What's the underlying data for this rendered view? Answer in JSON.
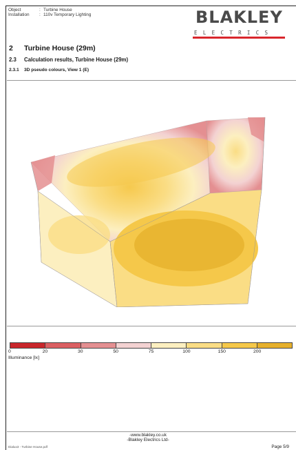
{
  "header": {
    "object_label": "Object",
    "object_value": "Turbine House",
    "installation_label": "Installation",
    "installation_value": "110v Temporary Lighting",
    "separator": ":"
  },
  "logo": {
    "wordmark": "BLAKLEY",
    "subtitle": "ELECTRICS"
  },
  "headings": {
    "h1_num": "2",
    "h1_text": "Turbine House (29m)",
    "h2_num": "2.3",
    "h2_text": "Calculation results, Turbine House (29m)",
    "h3_num": "2.3.1",
    "h3_text": "3D pseudo colours, View 1 (E)"
  },
  "legend": {
    "colors": [
      "#c8262b",
      "#db5f62",
      "#e48f91",
      "#f3d2d2",
      "#fcefc0",
      "#fadd85",
      "#f5c84a",
      "#e6b02c"
    ],
    "ticks": [
      "0",
      "20",
      "30",
      "50",
      "75",
      "100",
      "150",
      "200"
    ],
    "unit_label": "Illuminance [lx]"
  },
  "footer": {
    "website": "-www.blakley.co.uk",
    "company": "-Blakley Electrics Ltd-",
    "filename": "Dialux3 - Turbine House.pdf",
    "page": "Page 5/9"
  }
}
